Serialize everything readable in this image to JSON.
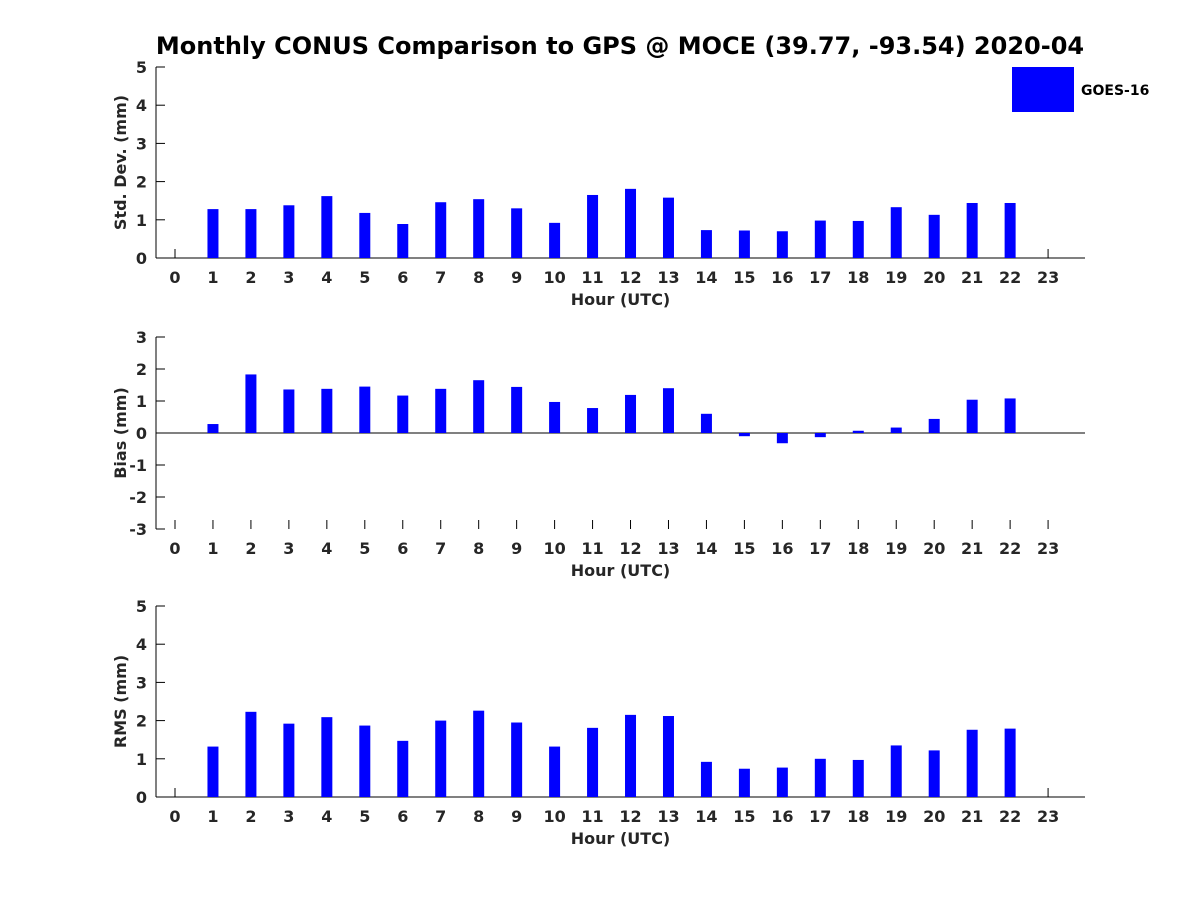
{
  "figure": {
    "title": "Monthly CONUS Comparison to GPS @ MOCE (39.77, -93.54) 2020-04"
  },
  "legend": {
    "label": "GOES-16",
    "color": "#0000ff",
    "placement": "top-right"
  },
  "chart_data": [
    {
      "type": "bar",
      "xlabel": "Hour (UTC)",
      "ylabel": "Std. Dev. (mm)",
      "ylim": [
        0,
        5
      ],
      "yticks": [
        "0",
        "1",
        "2",
        "3",
        "4",
        "5"
      ],
      "categories": [
        "0",
        "1",
        "2",
        "3",
        "4",
        "5",
        "6",
        "7",
        "8",
        "9",
        "10",
        "11",
        "12",
        "13",
        "14",
        "15",
        "16",
        "17",
        "18",
        "19",
        "20",
        "21",
        "22",
        "23"
      ],
      "series": [
        {
          "name": "GOES-16",
          "color": "#0000ff",
          "values": [
            null,
            1.28,
            1.28,
            1.38,
            1.62,
            1.18,
            0.89,
            1.46,
            1.54,
            1.3,
            0.92,
            1.65,
            1.81,
            1.58,
            0.73,
            0.72,
            0.7,
            0.98,
            0.97,
            1.33,
            1.13,
            1.44,
            1.44,
            null
          ]
        }
      ],
      "grid": false
    },
    {
      "type": "bar",
      "xlabel": "Hour (UTC)",
      "ylabel": "Bias (mm)",
      "ylim": [
        -3,
        3
      ],
      "yticks": [
        "-3",
        "-2",
        "-1",
        "0",
        "1",
        "2",
        "3"
      ],
      "categories": [
        "0",
        "1",
        "2",
        "3",
        "4",
        "5",
        "6",
        "7",
        "8",
        "9",
        "10",
        "11",
        "12",
        "13",
        "14",
        "15",
        "16",
        "17",
        "18",
        "19",
        "20",
        "21",
        "22",
        "23"
      ],
      "series": [
        {
          "name": "GOES-16",
          "color": "#0000ff",
          "values": [
            null,
            0.28,
            1.83,
            1.36,
            1.38,
            1.45,
            1.17,
            1.38,
            1.65,
            1.44,
            0.97,
            0.78,
            1.19,
            1.4,
            0.6,
            -0.1,
            -0.32,
            -0.13,
            0.07,
            0.17,
            0.44,
            1.04,
            1.08,
            null
          ]
        }
      ],
      "grid": false
    },
    {
      "type": "bar",
      "xlabel": "Hour (UTC)",
      "ylabel": "RMS (mm)",
      "ylim": [
        0,
        5
      ],
      "yticks": [
        "0",
        "1",
        "2",
        "3",
        "4",
        "5"
      ],
      "categories": [
        "0",
        "1",
        "2",
        "3",
        "4",
        "5",
        "6",
        "7",
        "8",
        "9",
        "10",
        "11",
        "12",
        "13",
        "14",
        "15",
        "16",
        "17",
        "18",
        "19",
        "20",
        "21",
        "22",
        "23"
      ],
      "series": [
        {
          "name": "GOES-16",
          "color": "#0000ff",
          "values": [
            null,
            1.32,
            2.23,
            1.92,
            2.09,
            1.87,
            1.47,
            2.0,
            2.26,
            1.95,
            1.32,
            1.81,
            2.15,
            2.12,
            0.92,
            0.74,
            0.77,
            1.0,
            0.97,
            1.35,
            1.22,
            1.76,
            1.79,
            null
          ]
        }
      ],
      "grid": false
    }
  ]
}
